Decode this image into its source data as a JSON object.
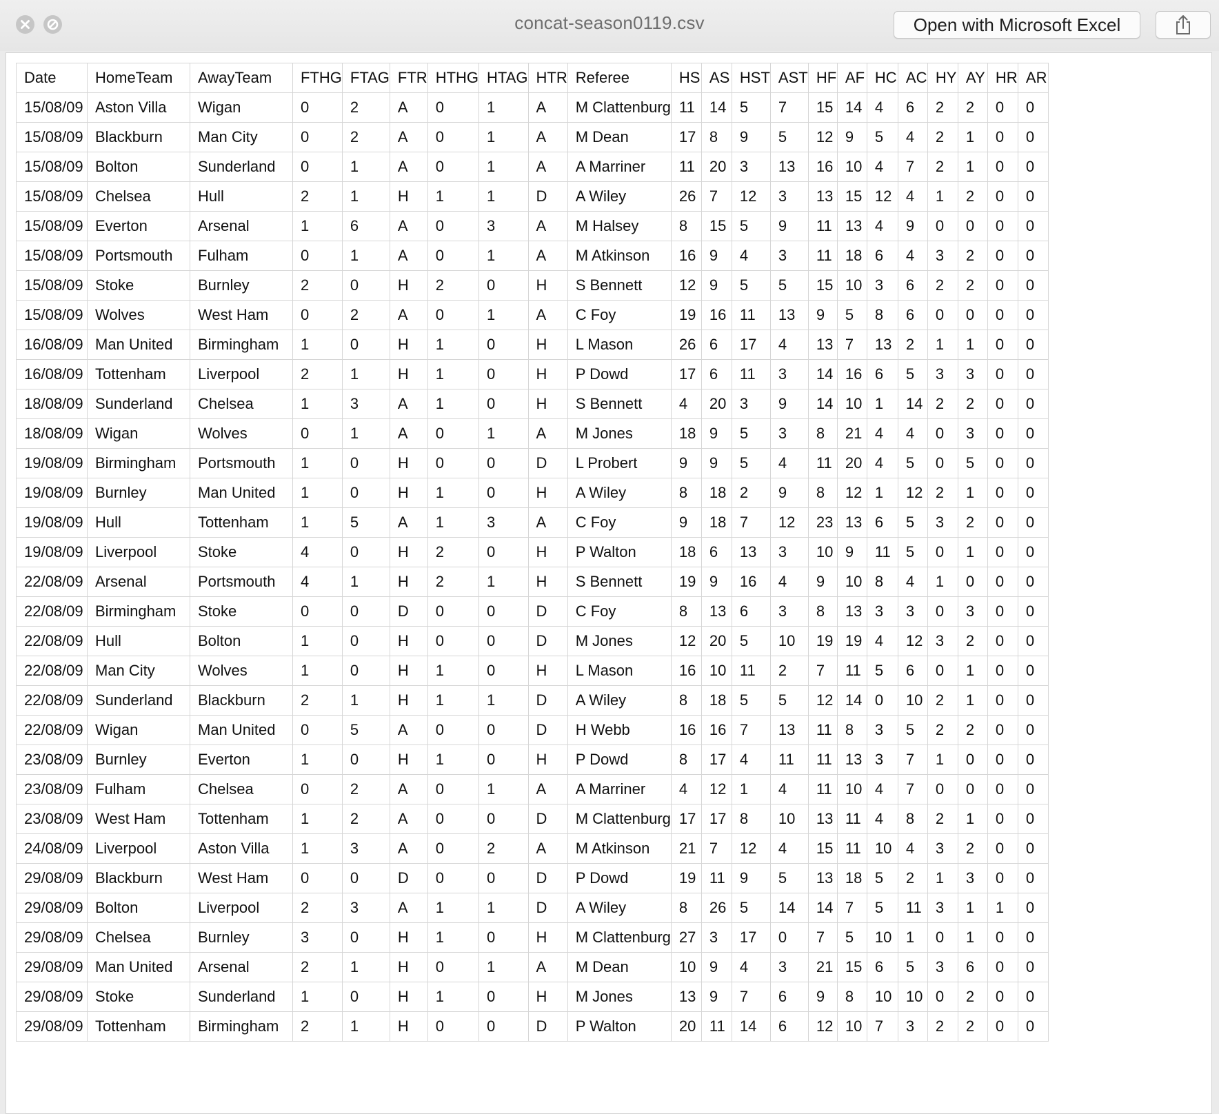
{
  "window": {
    "title": "concat-season0119.csv",
    "open_button_label": "Open with Microsoft Excel",
    "close_icon": "close-icon",
    "minimize_icon": "minimize-icon",
    "share_icon": "share-icon"
  },
  "table": {
    "columns": [
      "Date",
      "HomeTeam",
      "AwayTeam",
      "FTHG",
      "FTAG",
      "FTR",
      "HTHG",
      "HTAG",
      "HTR",
      "Referee",
      "HS",
      "AS",
      "HST",
      "AST",
      "HF",
      "AF",
      "HC",
      "AC",
      "HY",
      "AY",
      "HR",
      "AR"
    ],
    "rows": [
      [
        "15/08/09",
        "Aston Villa",
        "Wigan",
        "0",
        "2",
        "A",
        "0",
        "1",
        "A",
        "M Clattenburg",
        "11",
        "14",
        "5",
        "7",
        "15",
        "14",
        "4",
        "6",
        "2",
        "2",
        "0",
        "0"
      ],
      [
        "15/08/09",
        "Blackburn",
        "Man City",
        "0",
        "2",
        "A",
        "0",
        "1",
        "A",
        "M Dean",
        "17",
        "8",
        "9",
        "5",
        "12",
        "9",
        "5",
        "4",
        "2",
        "1",
        "0",
        "0"
      ],
      [
        "15/08/09",
        "Bolton",
        "Sunderland",
        "0",
        "1",
        "A",
        "0",
        "1",
        "A",
        "A Marriner",
        "11",
        "20",
        "3",
        "13",
        "16",
        "10",
        "4",
        "7",
        "2",
        "1",
        "0",
        "0"
      ],
      [
        "15/08/09",
        "Chelsea",
        "Hull",
        "2",
        "1",
        "H",
        "1",
        "1",
        "D",
        "A Wiley",
        "26",
        "7",
        "12",
        "3",
        "13",
        "15",
        "12",
        "4",
        "1",
        "2",
        "0",
        "0"
      ],
      [
        "15/08/09",
        "Everton",
        "Arsenal",
        "1",
        "6",
        "A",
        "0",
        "3",
        "A",
        "M Halsey",
        "8",
        "15",
        "5",
        "9",
        "11",
        "13",
        "4",
        "9",
        "0",
        "0",
        "0",
        "0"
      ],
      [
        "15/08/09",
        "Portsmouth",
        "Fulham",
        "0",
        "1",
        "A",
        "0",
        "1",
        "A",
        "M Atkinson",
        "16",
        "9",
        "4",
        "3",
        "11",
        "18",
        "6",
        "4",
        "3",
        "2",
        "0",
        "0"
      ],
      [
        "15/08/09",
        "Stoke",
        "Burnley",
        "2",
        "0",
        "H",
        "2",
        "0",
        "H",
        "S Bennett",
        "12",
        "9",
        "5",
        "5",
        "15",
        "10",
        "3",
        "6",
        "2",
        "2",
        "0",
        "0"
      ],
      [
        "15/08/09",
        "Wolves",
        "West Ham",
        "0",
        "2",
        "A",
        "0",
        "1",
        "A",
        "C Foy",
        "19",
        "16",
        "11",
        "13",
        "9",
        "5",
        "8",
        "6",
        "0",
        "0",
        "0",
        "0"
      ],
      [
        "16/08/09",
        "Man United",
        "Birmingham",
        "1",
        "0",
        "H",
        "1",
        "0",
        "H",
        "L Mason",
        "26",
        "6",
        "17",
        "4",
        "13",
        "7",
        "13",
        "2",
        "1",
        "1",
        "0",
        "0"
      ],
      [
        "16/08/09",
        "Tottenham",
        "Liverpool",
        "2",
        "1",
        "H",
        "1",
        "0",
        "H",
        "P Dowd",
        "17",
        "6",
        "11",
        "3",
        "14",
        "16",
        "6",
        "5",
        "3",
        "3",
        "0",
        "0"
      ],
      [
        "18/08/09",
        "Sunderland",
        "Chelsea",
        "1",
        "3",
        "A",
        "1",
        "0",
        "H",
        "S Bennett",
        "4",
        "20",
        "3",
        "9",
        "14",
        "10",
        "1",
        "14",
        "2",
        "2",
        "0",
        "0"
      ],
      [
        "18/08/09",
        "Wigan",
        "Wolves",
        "0",
        "1",
        "A",
        "0",
        "1",
        "A",
        "M Jones",
        "18",
        "9",
        "5",
        "3",
        "8",
        "21",
        "4",
        "4",
        "0",
        "3",
        "0",
        "0"
      ],
      [
        "19/08/09",
        "Birmingham",
        "Portsmouth",
        "1",
        "0",
        "H",
        "0",
        "0",
        "D",
        "L Probert",
        "9",
        "9",
        "5",
        "4",
        "11",
        "20",
        "4",
        "5",
        "0",
        "5",
        "0",
        "0"
      ],
      [
        "19/08/09",
        "Burnley",
        "Man United",
        "1",
        "0",
        "H",
        "1",
        "0",
        "H",
        "A Wiley",
        "8",
        "18",
        "2",
        "9",
        "8",
        "12",
        "1",
        "12",
        "2",
        "1",
        "0",
        "0"
      ],
      [
        "19/08/09",
        "Hull",
        "Tottenham",
        "1",
        "5",
        "A",
        "1",
        "3",
        "A",
        "C Foy",
        "9",
        "18",
        "7",
        "12",
        "23",
        "13",
        "6",
        "5",
        "3",
        "2",
        "0",
        "0"
      ],
      [
        "19/08/09",
        "Liverpool",
        "Stoke",
        "4",
        "0",
        "H",
        "2",
        "0",
        "H",
        "P Walton",
        "18",
        "6",
        "13",
        "3",
        "10",
        "9",
        "11",
        "5",
        "0",
        "1",
        "0",
        "0"
      ],
      [
        "22/08/09",
        "Arsenal",
        "Portsmouth",
        "4",
        "1",
        "H",
        "2",
        "1",
        "H",
        "S Bennett",
        "19",
        "9",
        "16",
        "4",
        "9",
        "10",
        "8",
        "4",
        "1",
        "0",
        "0",
        "0"
      ],
      [
        "22/08/09",
        "Birmingham",
        "Stoke",
        "0",
        "0",
        "D",
        "0",
        "0",
        "D",
        "C Foy",
        "8",
        "13",
        "6",
        "3",
        "8",
        "13",
        "3",
        "3",
        "0",
        "3",
        "0",
        "0"
      ],
      [
        "22/08/09",
        "Hull",
        "Bolton",
        "1",
        "0",
        "H",
        "0",
        "0",
        "D",
        "M Jones",
        "12",
        "20",
        "5",
        "10",
        "19",
        "19",
        "4",
        "12",
        "3",
        "2",
        "0",
        "0"
      ],
      [
        "22/08/09",
        "Man City",
        "Wolves",
        "1",
        "0",
        "H",
        "1",
        "0",
        "H",
        "L Mason",
        "16",
        "10",
        "11",
        "2",
        "7",
        "11",
        "5",
        "6",
        "0",
        "1",
        "0",
        "0"
      ],
      [
        "22/08/09",
        "Sunderland",
        "Blackburn",
        "2",
        "1",
        "H",
        "1",
        "1",
        "D",
        "A Wiley",
        "8",
        "18",
        "5",
        "5",
        "12",
        "14",
        "0",
        "10",
        "2",
        "1",
        "0",
        "0"
      ],
      [
        "22/08/09",
        "Wigan",
        "Man United",
        "0",
        "5",
        "A",
        "0",
        "0",
        "D",
        "H Webb",
        "16",
        "16",
        "7",
        "13",
        "11",
        "8",
        "3",
        "5",
        "2",
        "2",
        "0",
        "0"
      ],
      [
        "23/08/09",
        "Burnley",
        "Everton",
        "1",
        "0",
        "H",
        "1",
        "0",
        "H",
        "P Dowd",
        "8",
        "17",
        "4",
        "11",
        "11",
        "13",
        "3",
        "7",
        "1",
        "0",
        "0",
        "0"
      ],
      [
        "23/08/09",
        "Fulham",
        "Chelsea",
        "0",
        "2",
        "A",
        "0",
        "1",
        "A",
        "A Marriner",
        "4",
        "12",
        "1",
        "4",
        "11",
        "10",
        "4",
        "7",
        "0",
        "0",
        "0",
        "0"
      ],
      [
        "23/08/09",
        "West Ham",
        "Tottenham",
        "1",
        "2",
        "A",
        "0",
        "0",
        "D",
        "M Clattenburg",
        "17",
        "17",
        "8",
        "10",
        "13",
        "11",
        "4",
        "8",
        "2",
        "1",
        "0",
        "0"
      ],
      [
        "24/08/09",
        "Liverpool",
        "Aston Villa",
        "1",
        "3",
        "A",
        "0",
        "2",
        "A",
        "M Atkinson",
        "21",
        "7",
        "12",
        "4",
        "15",
        "11",
        "10",
        "4",
        "3",
        "2",
        "0",
        "0"
      ],
      [
        "29/08/09",
        "Blackburn",
        "West Ham",
        "0",
        "0",
        "D",
        "0",
        "0",
        "D",
        "P Dowd",
        "19",
        "11",
        "9",
        "5",
        "13",
        "18",
        "5",
        "2",
        "1",
        "3",
        "0",
        "0"
      ],
      [
        "29/08/09",
        "Bolton",
        "Liverpool",
        "2",
        "3",
        "A",
        "1",
        "1",
        "D",
        "A Wiley",
        "8",
        "26",
        "5",
        "14",
        "14",
        "7",
        "5",
        "11",
        "3",
        "1",
        "1",
        "0"
      ],
      [
        "29/08/09",
        "Chelsea",
        "Burnley",
        "3",
        "0",
        "H",
        "1",
        "0",
        "H",
        "M Clattenburg",
        "27",
        "3",
        "17",
        "0",
        "7",
        "5",
        "10",
        "1",
        "0",
        "1",
        "0",
        "0"
      ],
      [
        "29/08/09",
        "Man United",
        "Arsenal",
        "2",
        "1",
        "H",
        "0",
        "1",
        "A",
        "M Dean",
        "10",
        "9",
        "4",
        "3",
        "21",
        "15",
        "6",
        "5",
        "3",
        "6",
        "0",
        "0"
      ],
      [
        "29/08/09",
        "Stoke",
        "Sunderland",
        "1",
        "0",
        "H",
        "1",
        "0",
        "H",
        "M Jones",
        "13",
        "9",
        "7",
        "6",
        "9",
        "8",
        "10",
        "10",
        "0",
        "2",
        "0",
        "0"
      ],
      [
        "29/08/09",
        "Tottenham",
        "Birmingham",
        "2",
        "1",
        "H",
        "0",
        "0",
        "D",
        "P Walton",
        "20",
        "11",
        "14",
        "6",
        "12",
        "10",
        "7",
        "3",
        "2",
        "2",
        "0",
        "0"
      ]
    ]
  }
}
